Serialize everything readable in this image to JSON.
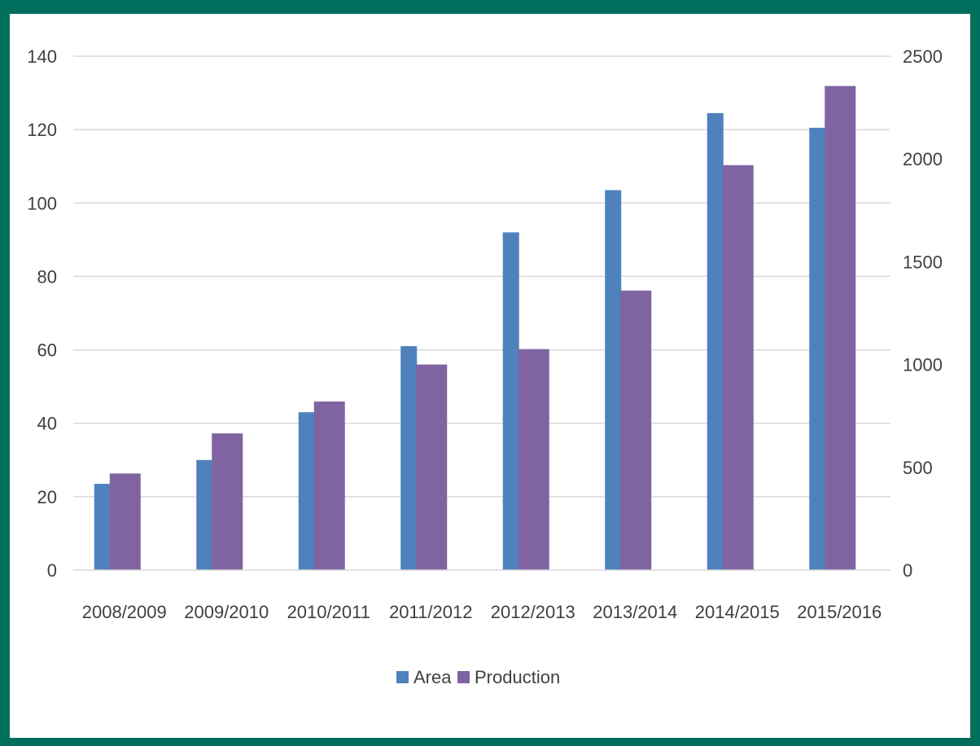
{
  "chart_data": {
    "type": "bar",
    "categories": [
      "2008/2009",
      "2009/2010",
      "2010/2011",
      "2011/2012",
      "2012/2013",
      "2013/2014",
      "2014/2015",
      "2015/2016"
    ],
    "series": [
      {
        "name": "Area",
        "axis": "left",
        "color": "#4f81bd",
        "values": [
          23.5,
          30,
          43,
          61,
          92,
          103.5,
          124.5,
          120.5
        ]
      },
      {
        "name": "Production",
        "axis": "right",
        "color": "#8064a2",
        "values": [
          470,
          665,
          820,
          1000,
          1075,
          1360,
          1970,
          2355
        ]
      }
    ],
    "y_left": {
      "range": [
        0,
        140
      ],
      "ticks": [
        "0",
        "20",
        "40",
        "60",
        "80",
        "100",
        "120",
        "140"
      ]
    },
    "y_right": {
      "range": [
        0,
        2500
      ],
      "ticks": [
        "0",
        "500",
        "1000",
        "1500",
        "2000",
        "2500"
      ]
    },
    "grid": true,
    "legend": "bottom-center"
  },
  "colors": {
    "frame_background": "#006e5c",
    "plot_background": "#ffffff",
    "gridline": "#d9d9d9",
    "text": "#404040"
  }
}
